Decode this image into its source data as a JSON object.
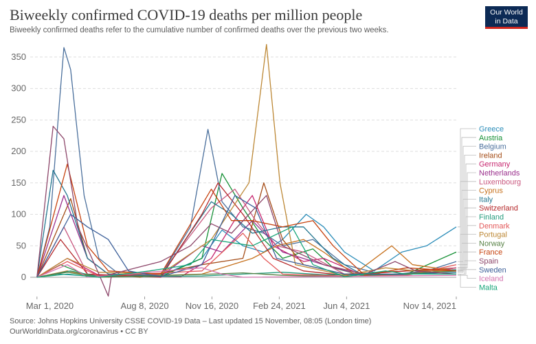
{
  "header": {
    "title": "Biweekly confirmed COVID-19 deaths per million people",
    "subtitle": "Biweekly confirmed deaths refer to the cumulative number of confirmed deaths over the previous two weeks.",
    "logo_line1": "Our World",
    "logo_line2": "in Data"
  },
  "footer": {
    "source": "Source: Johns Hopkins University CSSE COVID-19 Data – Last updated 15 November, 08:05 (London time)",
    "url": "OurWorldInData.org/coronavirus • CC BY"
  },
  "colors": {
    "logo_bg": "#0c2a55",
    "logo_accent": "#ce261e",
    "grid": "#dddddd",
    "axis_text": "#666666"
  },
  "chart_data": {
    "type": "line",
    "title": "Biweekly confirmed COVID-19 deaths per million people",
    "subtitle": "Biweekly confirmed deaths refer to the cumulative number of confirmed deaths over the previous two weeks.",
    "xlabel": "",
    "ylabel": "",
    "x_ticks": [
      "Mar 1, 2020",
      "Aug 8, 2020",
      "Nov 16, 2020",
      "Feb 24, 2021",
      "Jun 4, 2021",
      "Nov 14, 2021"
    ],
    "x_range": [
      "2020-02-20",
      "2021-11-14"
    ],
    "y_ticks": [
      0,
      50,
      100,
      150,
      200,
      250,
      300,
      350
    ],
    "ylim": [
      -35,
      375
    ],
    "grid": "horizontal dashed",
    "legend": "right, labels aligned with series end",
    "series": [
      {
        "name": "Greece",
        "color": "#2a8cb8",
        "points": [
          [
            "2020-03-01",
            0
          ],
          [
            "2020-04-01",
            5
          ],
          [
            "2020-06-01",
            1
          ],
          [
            "2020-09-01",
            3
          ],
          [
            "2020-11-01",
            30
          ],
          [
            "2020-12-01",
            75
          ],
          [
            "2021-01-01",
            50
          ],
          [
            "2021-02-01",
            40
          ],
          [
            "2021-03-01",
            60
          ],
          [
            "2021-04-05",
            100
          ],
          [
            "2021-05-01",
            80
          ],
          [
            "2021-06-01",
            40
          ],
          [
            "2021-07-15",
            10
          ],
          [
            "2021-08-25",
            40
          ],
          [
            "2021-10-01",
            50
          ],
          [
            "2021-11-14",
            80
          ]
        ]
      },
      {
        "name": "Austria",
        "color": "#148f34",
        "points": [
          [
            "2020-03-01",
            0
          ],
          [
            "2020-04-05",
            20
          ],
          [
            "2020-05-15",
            3
          ],
          [
            "2020-09-01",
            1
          ],
          [
            "2020-11-01",
            30
          ],
          [
            "2020-12-01",
            165
          ],
          [
            "2021-01-01",
            110
          ],
          [
            "2021-02-01",
            60
          ],
          [
            "2021-03-01",
            30
          ],
          [
            "2021-04-15",
            45
          ],
          [
            "2021-05-15",
            15
          ],
          [
            "2021-07-01",
            2
          ],
          [
            "2021-09-01",
            5
          ],
          [
            "2021-11-14",
            40
          ]
        ]
      },
      {
        "name": "Belgium",
        "color": "#4a6f9c",
        "points": [
          [
            "2020-03-01",
            0
          ],
          [
            "2020-03-20",
            80
          ],
          [
            "2020-04-05",
            300
          ],
          [
            "2020-04-10",
            365
          ],
          [
            "2020-04-20",
            330
          ],
          [
            "2020-05-10",
            130
          ],
          [
            "2020-06-01",
            30
          ],
          [
            "2020-07-01",
            5
          ],
          [
            "2020-09-01",
            3
          ],
          [
            "2020-10-15",
            80
          ],
          [
            "2020-11-10",
            235
          ],
          [
            "2020-12-01",
            120
          ],
          [
            "2021-01-01",
            80
          ],
          [
            "2021-02-01",
            70
          ],
          [
            "2021-03-01",
            50
          ],
          [
            "2021-04-15",
            60
          ],
          [
            "2021-06-01",
            20
          ],
          [
            "2021-08-01",
            3
          ],
          [
            "2021-10-01",
            10
          ],
          [
            "2021-11-14",
            25
          ]
        ]
      },
      {
        "name": "Ireland",
        "color": "#a34b15",
        "points": [
          [
            "2020-03-01",
            0
          ],
          [
            "2020-04-20",
            125
          ],
          [
            "2020-05-15",
            30
          ],
          [
            "2020-06-15",
            5
          ],
          [
            "2020-08-01",
            0
          ],
          [
            "2020-11-01",
            20
          ],
          [
            "2021-01-01",
            30
          ],
          [
            "2021-02-01",
            150
          ],
          [
            "2021-03-01",
            60
          ],
          [
            "2021-04-01",
            20
          ],
          [
            "2021-06-01",
            5
          ],
          [
            "2021-09-01",
            10
          ],
          [
            "2021-11-14",
            15
          ]
        ]
      },
      {
        "name": "Germany",
        "color": "#c7256e",
        "points": [
          [
            "2020-03-01",
            0
          ],
          [
            "2020-04-15",
            30
          ],
          [
            "2020-06-01",
            3
          ],
          [
            "2020-10-01",
            1
          ],
          [
            "2020-11-15",
            30
          ],
          [
            "2020-12-25",
            100
          ],
          [
            "2021-01-15",
            130
          ],
          [
            "2021-02-15",
            50
          ],
          [
            "2021-04-01",
            25
          ],
          [
            "2021-05-01",
            30
          ],
          [
            "2021-07-01",
            2
          ],
          [
            "2021-09-01",
            5
          ],
          [
            "2021-11-14",
            15
          ]
        ]
      },
      {
        "name": "Netherlands",
        "color": "#9a2f8c",
        "points": [
          [
            "2020-03-01",
            0
          ],
          [
            "2020-04-10",
            130
          ],
          [
            "2020-05-15",
            30
          ],
          [
            "2020-06-15",
            5
          ],
          [
            "2020-09-01",
            2
          ],
          [
            "2020-11-01",
            50
          ],
          [
            "2020-12-01",
            40
          ],
          [
            "2021-01-15",
            90
          ],
          [
            "2021-03-01",
            40
          ],
          [
            "2021-05-01",
            20
          ],
          [
            "2021-07-01",
            2
          ],
          [
            "2021-09-01",
            5
          ],
          [
            "2021-11-14",
            15
          ]
        ]
      },
      {
        "name": "Luxembourg",
        "color": "#c8577e",
        "points": [
          [
            "2020-03-01",
            0
          ],
          [
            "2020-04-10",
            80
          ],
          [
            "2020-05-15",
            5
          ],
          [
            "2020-06-15",
            0
          ],
          [
            "2020-09-01",
            5
          ],
          [
            "2020-11-15",
            110
          ],
          [
            "2020-12-20",
            140
          ],
          [
            "2021-01-20",
            90
          ],
          [
            "2021-02-20",
            50
          ],
          [
            "2021-04-01",
            40
          ],
          [
            "2021-06-01",
            5
          ],
          [
            "2021-09-01",
            5
          ],
          [
            "2021-11-14",
            15
          ]
        ]
      },
      {
        "name": "Cyprus",
        "color": "#c6701c",
        "points": [
          [
            "2020-03-01",
            0
          ],
          [
            "2020-04-15",
            10
          ],
          [
            "2020-06-01",
            0
          ],
          [
            "2020-11-01",
            5
          ],
          [
            "2021-01-15",
            30
          ],
          [
            "2021-02-20",
            50
          ],
          [
            "2021-04-01",
            60
          ],
          [
            "2021-05-01",
            40
          ],
          [
            "2021-06-15",
            5
          ],
          [
            "2021-08-10",
            50
          ],
          [
            "2021-09-10",
            20
          ],
          [
            "2021-11-14",
            10
          ]
        ]
      },
      {
        "name": "Italy",
        "color": "#23768f",
        "points": [
          [
            "2020-03-01",
            0
          ],
          [
            "2020-03-25",
            170
          ],
          [
            "2020-04-15",
            130
          ],
          [
            "2020-05-15",
            30
          ],
          [
            "2020-06-15",
            5
          ],
          [
            "2020-09-01",
            2
          ],
          [
            "2020-11-15",
            120
          ],
          [
            "2020-12-15",
            100
          ],
          [
            "2021-01-15",
            70
          ],
          [
            "2021-03-01",
            80
          ],
          [
            "2021-04-01",
            80
          ],
          [
            "2021-05-15",
            30
          ],
          [
            "2021-07-01",
            2
          ],
          [
            "2021-09-01",
            5
          ],
          [
            "2021-11-14",
            8
          ]
        ]
      },
      {
        "name": "Switzerland",
        "color": "#b5292b",
        "points": [
          [
            "2020-03-01",
            0
          ],
          [
            "2020-04-05",
            60
          ],
          [
            "2020-05-15",
            5
          ],
          [
            "2020-09-01",
            0
          ],
          [
            "2020-11-01",
            100
          ],
          [
            "2020-11-25",
            150
          ],
          [
            "2021-01-01",
            100
          ],
          [
            "2021-02-15",
            30
          ],
          [
            "2021-04-01",
            10
          ],
          [
            "2021-06-01",
            3
          ],
          [
            "2021-09-01",
            10
          ],
          [
            "2021-11-14",
            12
          ]
        ]
      },
      {
        "name": "Finland",
        "color": "#239b7c",
        "points": [
          [
            "2020-03-01",
            0
          ],
          [
            "2020-04-20",
            10
          ],
          [
            "2020-06-01",
            1
          ],
          [
            "2020-11-01",
            2
          ],
          [
            "2021-01-01",
            5
          ],
          [
            "2021-03-01",
            8
          ],
          [
            "2021-05-01",
            4
          ],
          [
            "2021-09-01",
            4
          ],
          [
            "2021-11-14",
            12
          ]
        ]
      },
      {
        "name": "Denmark",
        "color": "#e35657",
        "points": [
          [
            "2020-03-01",
            0
          ],
          [
            "2020-04-15",
            25
          ],
          [
            "2020-06-01",
            2
          ],
          [
            "2020-11-01",
            10
          ],
          [
            "2021-01-01",
            70
          ],
          [
            "2021-02-01",
            30
          ],
          [
            "2021-03-01",
            5
          ],
          [
            "2021-06-01",
            2
          ],
          [
            "2021-09-01",
            3
          ],
          [
            "2021-11-14",
            20
          ]
        ]
      },
      {
        "name": "Portugal",
        "color": "#bc8734",
        "points": [
          [
            "2020-03-01",
            0
          ],
          [
            "2020-04-15",
            30
          ],
          [
            "2020-06-01",
            8
          ],
          [
            "2020-09-01",
            5
          ],
          [
            "2020-11-15",
            60
          ],
          [
            "2021-01-10",
            150
          ],
          [
            "2021-02-05",
            370
          ],
          [
            "2021-02-25",
            150
          ],
          [
            "2021-03-20",
            20
          ],
          [
            "2021-06-01",
            3
          ],
          [
            "2021-08-01",
            15
          ],
          [
            "2021-09-15",
            10
          ],
          [
            "2021-11-14",
            10
          ]
        ]
      },
      {
        "name": "Norway",
        "color": "#578145",
        "points": [
          [
            "2020-03-01",
            0
          ],
          [
            "2020-04-15",
            8
          ],
          [
            "2020-06-01",
            0
          ],
          [
            "2020-11-15",
            5
          ],
          [
            "2021-01-01",
            7
          ],
          [
            "2021-03-01",
            3
          ],
          [
            "2021-06-01",
            1
          ],
          [
            "2021-11-14",
            10
          ]
        ]
      },
      {
        "name": "France",
        "color": "#c6410d",
        "points": [
          [
            "2020-03-01",
            0
          ],
          [
            "2020-04-15",
            180
          ],
          [
            "2020-05-15",
            50
          ],
          [
            "2020-06-15",
            10
          ],
          [
            "2020-09-01",
            5
          ],
          [
            "2020-11-15",
            140
          ],
          [
            "2020-12-15",
            90
          ],
          [
            "2021-01-15",
            90
          ],
          [
            "2021-03-01",
            80
          ],
          [
            "2021-04-15",
            90
          ],
          [
            "2021-05-15",
            50
          ],
          [
            "2021-07-01",
            3
          ],
          [
            "2021-09-01",
            15
          ],
          [
            "2021-11-14",
            10
          ]
        ]
      },
      {
        "name": "Spain",
        "color": "#8c4569",
        "points": [
          [
            "2020-03-01",
            0
          ],
          [
            "2020-03-25",
            240
          ],
          [
            "2020-04-10",
            220
          ],
          [
            "2020-05-01",
            80
          ],
          [
            "2020-06-01",
            5
          ],
          [
            "2020-06-15",
            -30
          ],
          [
            "2020-06-20",
            5
          ],
          [
            "2020-09-01",
            25
          ],
          [
            "2020-10-15",
            50
          ],
          [
            "2020-11-15",
            85
          ],
          [
            "2020-12-15",
            70
          ],
          [
            "2021-02-05",
            130
          ],
          [
            "2021-03-01",
            50
          ],
          [
            "2021-05-01",
            20
          ],
          [
            "2021-07-01",
            5
          ],
          [
            "2021-08-15",
            25
          ],
          [
            "2021-09-15",
            10
          ],
          [
            "2021-11-14",
            5
          ]
        ]
      },
      {
        "name": "Sweden",
        "color": "#3c5f99",
        "points": [
          [
            "2020-03-01",
            0
          ],
          [
            "2020-04-20",
            100
          ],
          [
            "2020-05-15",
            80
          ],
          [
            "2020-06-15",
            60
          ],
          [
            "2020-07-15",
            10
          ],
          [
            "2020-09-01",
            1
          ],
          [
            "2020-11-01",
            20
          ],
          [
            "2020-12-20",
            130
          ],
          [
            "2021-01-20",
            110
          ],
          [
            "2021-02-20",
            30
          ],
          [
            "2021-04-01",
            20
          ],
          [
            "2021-06-01",
            5
          ],
          [
            "2021-11-14",
            5
          ]
        ]
      },
      {
        "name": "Iceland",
        "color": "#d26fac",
        "points": [
          [
            "2020-03-01",
            0
          ],
          [
            "2020-04-15",
            20
          ],
          [
            "2020-05-15",
            0
          ],
          [
            "2020-11-01",
            15
          ],
          [
            "2020-12-01",
            5
          ],
          [
            "2021-01-01",
            0
          ],
          [
            "2021-11-14",
            3
          ]
        ]
      },
      {
        "name": "Malta",
        "color": "#18a67a",
        "points": [
          [
            "2020-03-01",
            0
          ],
          [
            "2020-04-15",
            5
          ],
          [
            "2020-06-01",
            0
          ],
          [
            "2020-08-15",
            10
          ],
          [
            "2020-10-15",
            20
          ],
          [
            "2020-11-15",
            60
          ],
          [
            "2021-01-15",
            50
          ],
          [
            "2021-03-15",
            80
          ],
          [
            "2021-04-15",
            20
          ],
          [
            "2021-06-01",
            1
          ],
          [
            "2021-08-01",
            10
          ],
          [
            "2021-09-01",
            5
          ],
          [
            "2021-11-14",
            5
          ]
        ]
      }
    ]
  }
}
